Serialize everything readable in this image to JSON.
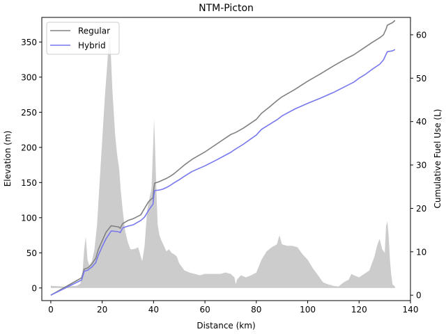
{
  "chart_data": {
    "type": "line",
    "title": "NTM-Picton",
    "xlabel": "Distance (km)",
    "ylabel": "Elevation (m)",
    "y2label": "Cumulative Fuel Use (L)",
    "xlim": [
      -3.5,
      140
    ],
    "ylim": [
      -18,
      385
    ],
    "y2lim": [
      -1.25,
      64
    ],
    "xticks": [
      0,
      20,
      40,
      60,
      80,
      100,
      120,
      140
    ],
    "yticks": [
      0,
      50,
      100,
      150,
      200,
      250,
      300,
      350
    ],
    "y2ticks": [
      0,
      10,
      20,
      30,
      40,
      50,
      60
    ],
    "legend_position": "upper-left",
    "elevation": {
      "color": "#cccccc",
      "x": [
        0,
        5,
        10,
        11.5,
        12.3,
        13,
        13.6,
        14.3,
        15,
        16,
        17,
        18,
        19,
        20,
        21,
        22,
        22.6,
        23,
        23.4,
        24,
        25,
        25.8,
        26.6,
        27.2,
        28,
        29,
        30,
        31,
        32,
        33,
        34,
        35,
        35.6,
        36.5,
        37.5,
        38.5,
        39.2,
        39.8,
        40.2,
        40.6,
        41,
        41.6,
        42.3,
        43,
        44,
        45,
        46,
        47,
        48,
        49,
        50,
        52,
        54,
        56,
        58,
        60,
        62,
        64,
        66,
        68,
        70,
        71.5,
        72,
        72.5,
        74,
        76,
        78,
        80,
        82,
        84,
        86,
        88,
        89,
        90,
        92,
        94,
        96,
        98,
        100,
        102,
        104,
        106,
        108,
        110,
        112,
        114,
        116,
        117,
        118,
        120,
        122,
        124,
        126,
        127,
        128,
        129,
        130,
        130.5,
        131,
        131.5,
        132,
        132.5,
        133,
        134
      ],
      "y": [
        3,
        2,
        3,
        6,
        20,
        55,
        73,
        40,
        32,
        38,
        55,
        90,
        150,
        210,
        270,
        320,
        350,
        360,
        330,
        280,
        220,
        190,
        170,
        140,
        110,
        80,
        65,
        55,
        55,
        56,
        58,
        45,
        38,
        60,
        110,
        130,
        140,
        200,
        240,
        200,
        150,
        90,
        75,
        68,
        60,
        52,
        55,
        50,
        48,
        45,
        35,
        25,
        22,
        20,
        18,
        20,
        20,
        20,
        20,
        22,
        20,
        15,
        5,
        12,
        18,
        15,
        18,
        22,
        40,
        52,
        58,
        62,
        75,
        62,
        60,
        60,
        58,
        48,
        40,
        28,
        18,
        8,
        5,
        3,
        2,
        8,
        12,
        20,
        18,
        15,
        20,
        25,
        45,
        60,
        70,
        55,
        50,
        88,
        95,
        75,
        40,
        20,
        5,
        2
      ]
    },
    "series": [
      {
        "name": "Regular",
        "color": "#808080",
        "axis": "right",
        "x": [
          0,
          12,
          13,
          14.5,
          16,
          17.5,
          18.5,
          20,
          21.5,
          23.5,
          26.5,
          27,
          28,
          30,
          32,
          35,
          36.5,
          38,
          39.8,
          40.1,
          40.4,
          42,
          43.5,
          45,
          46.5,
          48,
          50,
          52,
          55,
          60,
          65,
          70,
          72,
          75,
          80,
          82,
          85,
          88,
          90,
          95,
          100,
          105,
          110,
          115,
          118,
          120,
          122,
          125,
          128,
          129.5,
          130.5,
          131,
          132,
          133,
          134
        ],
        "y": [
          0,
          4,
          6,
          6.3,
          7.2,
          8.5,
          10.5,
          12.5,
          14.5,
          16,
          15.7,
          15.4,
          16.5,
          17.2,
          17.6,
          18.5,
          20,
          21.5,
          22.5,
          24.5,
          25.8,
          26.1,
          26.5,
          26.9,
          27.4,
          28,
          29,
          30,
          31.3,
          33,
          35,
          37,
          37.5,
          38.5,
          40.5,
          41.9,
          43.3,
          44.8,
          45.7,
          47.4,
          49.3,
          51,
          52.8,
          54.5,
          55.4,
          56.2,
          57,
          58.2,
          59.3,
          60,
          61.3,
          62.2,
          62.5,
          62.8,
          63.3
        ]
      },
      {
        "name": "Hybrid",
        "color": "#7777ee",
        "axis": "right",
        "x": [
          0,
          12,
          13,
          14.5,
          16,
          17.5,
          18.5,
          20,
          21.5,
          23.5,
          26.5,
          27,
          28,
          30,
          32,
          35,
          36.5,
          38,
          39.8,
          40.1,
          40.4,
          42,
          43.5,
          45,
          46.5,
          48,
          50,
          52,
          55,
          60,
          65,
          70,
          72,
          75,
          80,
          82,
          85,
          88,
          90,
          95,
          100,
          105,
          110,
          115,
          118,
          120,
          122,
          125,
          128,
          129.5,
          130.5,
          131,
          132,
          133,
          134
        ],
        "y": [
          0,
          3.5,
          5.5,
          5.8,
          6.5,
          7.5,
          9.2,
          11.2,
          13,
          14.8,
          14.6,
          14.4,
          15.5,
          15.9,
          16.2,
          17.2,
          18,
          19.5,
          21,
          23,
          24.1,
          24.2,
          24.4,
          24.8,
          25.3,
          25.9,
          26.6,
          27.4,
          28.5,
          29.8,
          31.3,
          32.9,
          33.7,
          34.8,
          36.9,
          38.2,
          39.3,
          40.4,
          41.3,
          42.9,
          44.2,
          45.4,
          46.7,
          48.2,
          49.1,
          50,
          50.7,
          52,
          53.2,
          54.2,
          55.5,
          56.1,
          56.2,
          56.3,
          56.6
        ]
      }
    ]
  }
}
